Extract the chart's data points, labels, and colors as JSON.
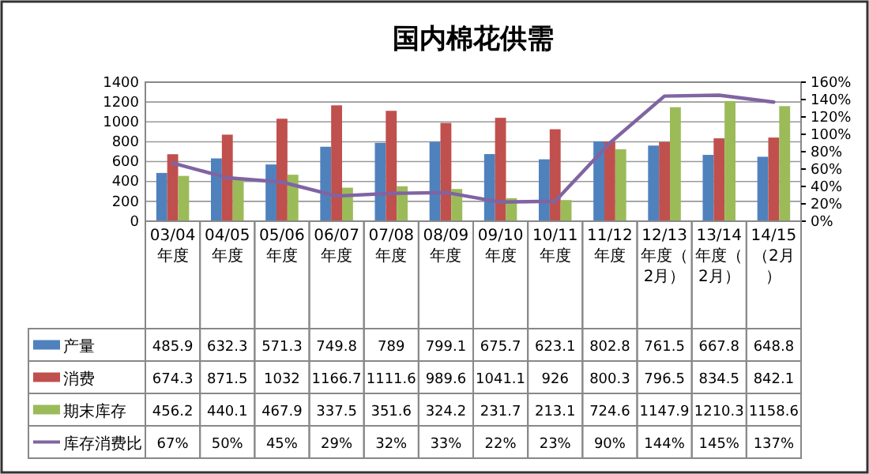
{
  "chart_data": {
    "type": "bar",
    "title": "国内棉花供需",
    "categories": [
      "03/04年度",
      "04/05年度",
      "05/06年度",
      "06/07年度",
      "07/08年度",
      "08/09年度",
      "09/10年度",
      "10/11年度",
      "11/12年度",
      "12/13年度（2月）",
      "13/14年度（2月）",
      "14/15（2月）"
    ],
    "series": [
      {
        "name": "产量",
        "color": "#4f81bd",
        "values": [
          485.9,
          632.3,
          571.3,
          749.8,
          789,
          799.1,
          675.7,
          623.1,
          802.8,
          761.5,
          667.8,
          648.8
        ]
      },
      {
        "name": "消费",
        "color": "#c0504d",
        "values": [
          674.3,
          871.5,
          1032,
          1166.7,
          1111.6,
          989.6,
          1041.1,
          926,
          800.3,
          796.5,
          834.5,
          842.1
        ]
      },
      {
        "name": "期末库存",
        "color": "#9bbb59",
        "values": [
          456.2,
          440.1,
          467.9,
          337.5,
          351.6,
          324.2,
          231.7,
          213.1,
          724.6,
          1147.9,
          1210.3,
          1158.6
        ]
      },
      {
        "name": "库存消费比",
        "color": "#8064a2",
        "type": "line",
        "axis": "y2",
        "values": [
          67,
          50,
          45,
          29,
          32,
          33,
          22,
          23,
          90,
          144,
          145,
          137
        ],
        "value_labels": [
          "67%",
          "50%",
          "45%",
          "29%",
          "32%",
          "33%",
          "22%",
          "23%",
          "90%",
          "144%",
          "145%",
          "137%"
        ]
      }
    ],
    "ylim": [
      0,
      1400
    ],
    "yticks": [
      0,
      200,
      400,
      600,
      800,
      1000,
      1200,
      1400
    ],
    "y2lim": [
      0,
      160
    ],
    "y2ticks": [
      {
        "value": 0,
        "label": "0%"
      },
      {
        "value": 20,
        "label": "20%"
      },
      {
        "value": 40,
        "label": "40%"
      },
      {
        "value": 60,
        "label": "60%"
      },
      {
        "value": 80,
        "label": "80%"
      },
      {
        "value": 100,
        "label": "100%"
      },
      {
        "value": 120,
        "label": "120%"
      },
      {
        "value": 140,
        "label": "140%"
      },
      {
        "value": 160,
        "label": "160%"
      }
    ],
    "grid": "y",
    "legend": "bottom",
    "data_labels": true,
    "marker": "none"
  }
}
